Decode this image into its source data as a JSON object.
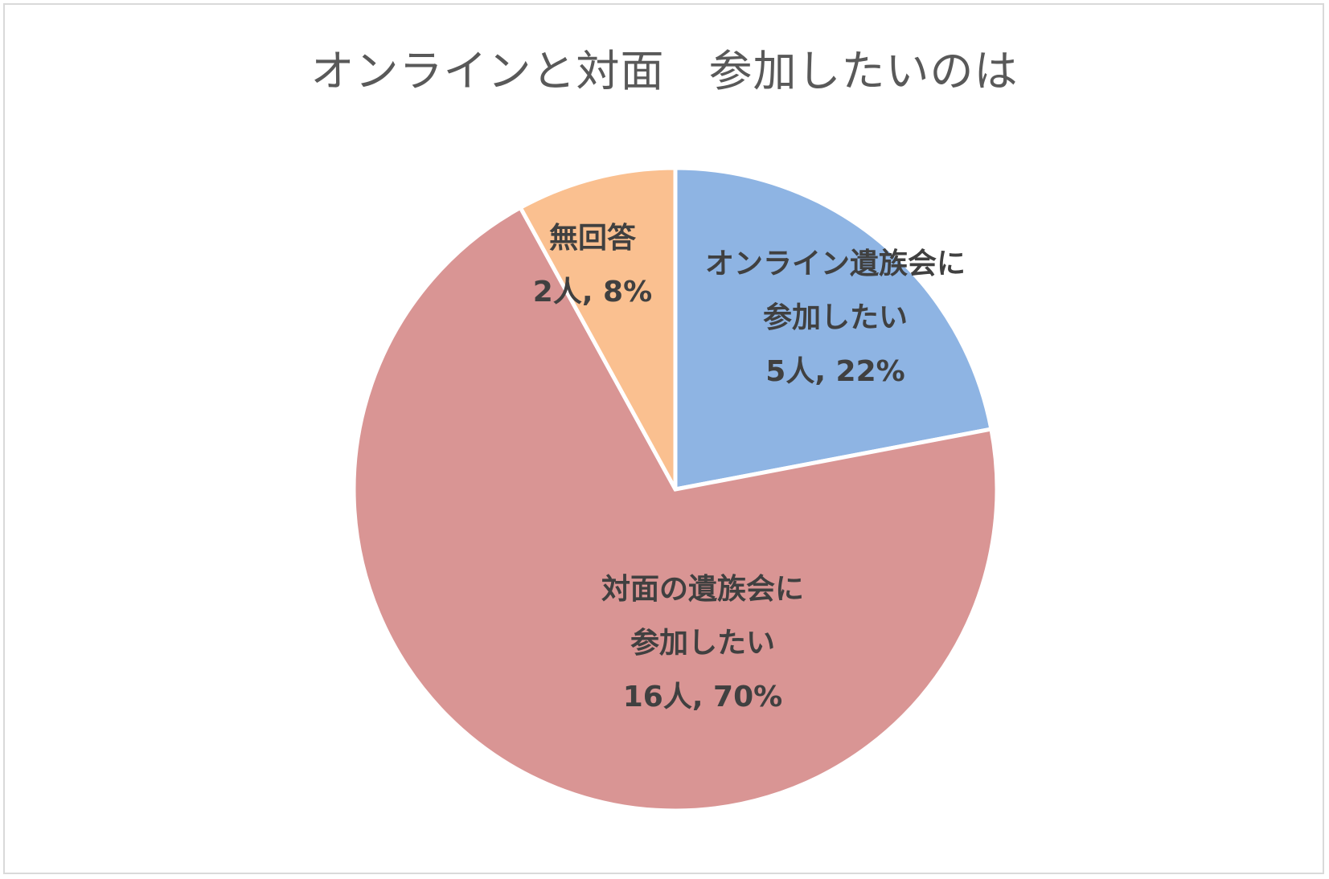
{
  "chart_data": {
    "type": "pie",
    "title": "オンラインと対面　参加したいのは",
    "start_angle_deg": 0,
    "direction": "clockwise",
    "slices": [
      {
        "label_lines": [
          "オンライン遺族会に",
          "参加したい"
        ],
        "value_text": "5人, 22%",
        "count": 5,
        "percent": 22,
        "color": "#8EB4E3"
      },
      {
        "label_lines": [
          "対面の遺族会に",
          "参加したい"
        ],
        "value_text": "16人, 70%",
        "count": 16,
        "percent": 70,
        "color": "#D99594"
      },
      {
        "label_lines": [
          "無回答"
        ],
        "value_text": "2人, 8%",
        "count": 2,
        "percent": 8,
        "color": "#FAC090"
      }
    ]
  }
}
